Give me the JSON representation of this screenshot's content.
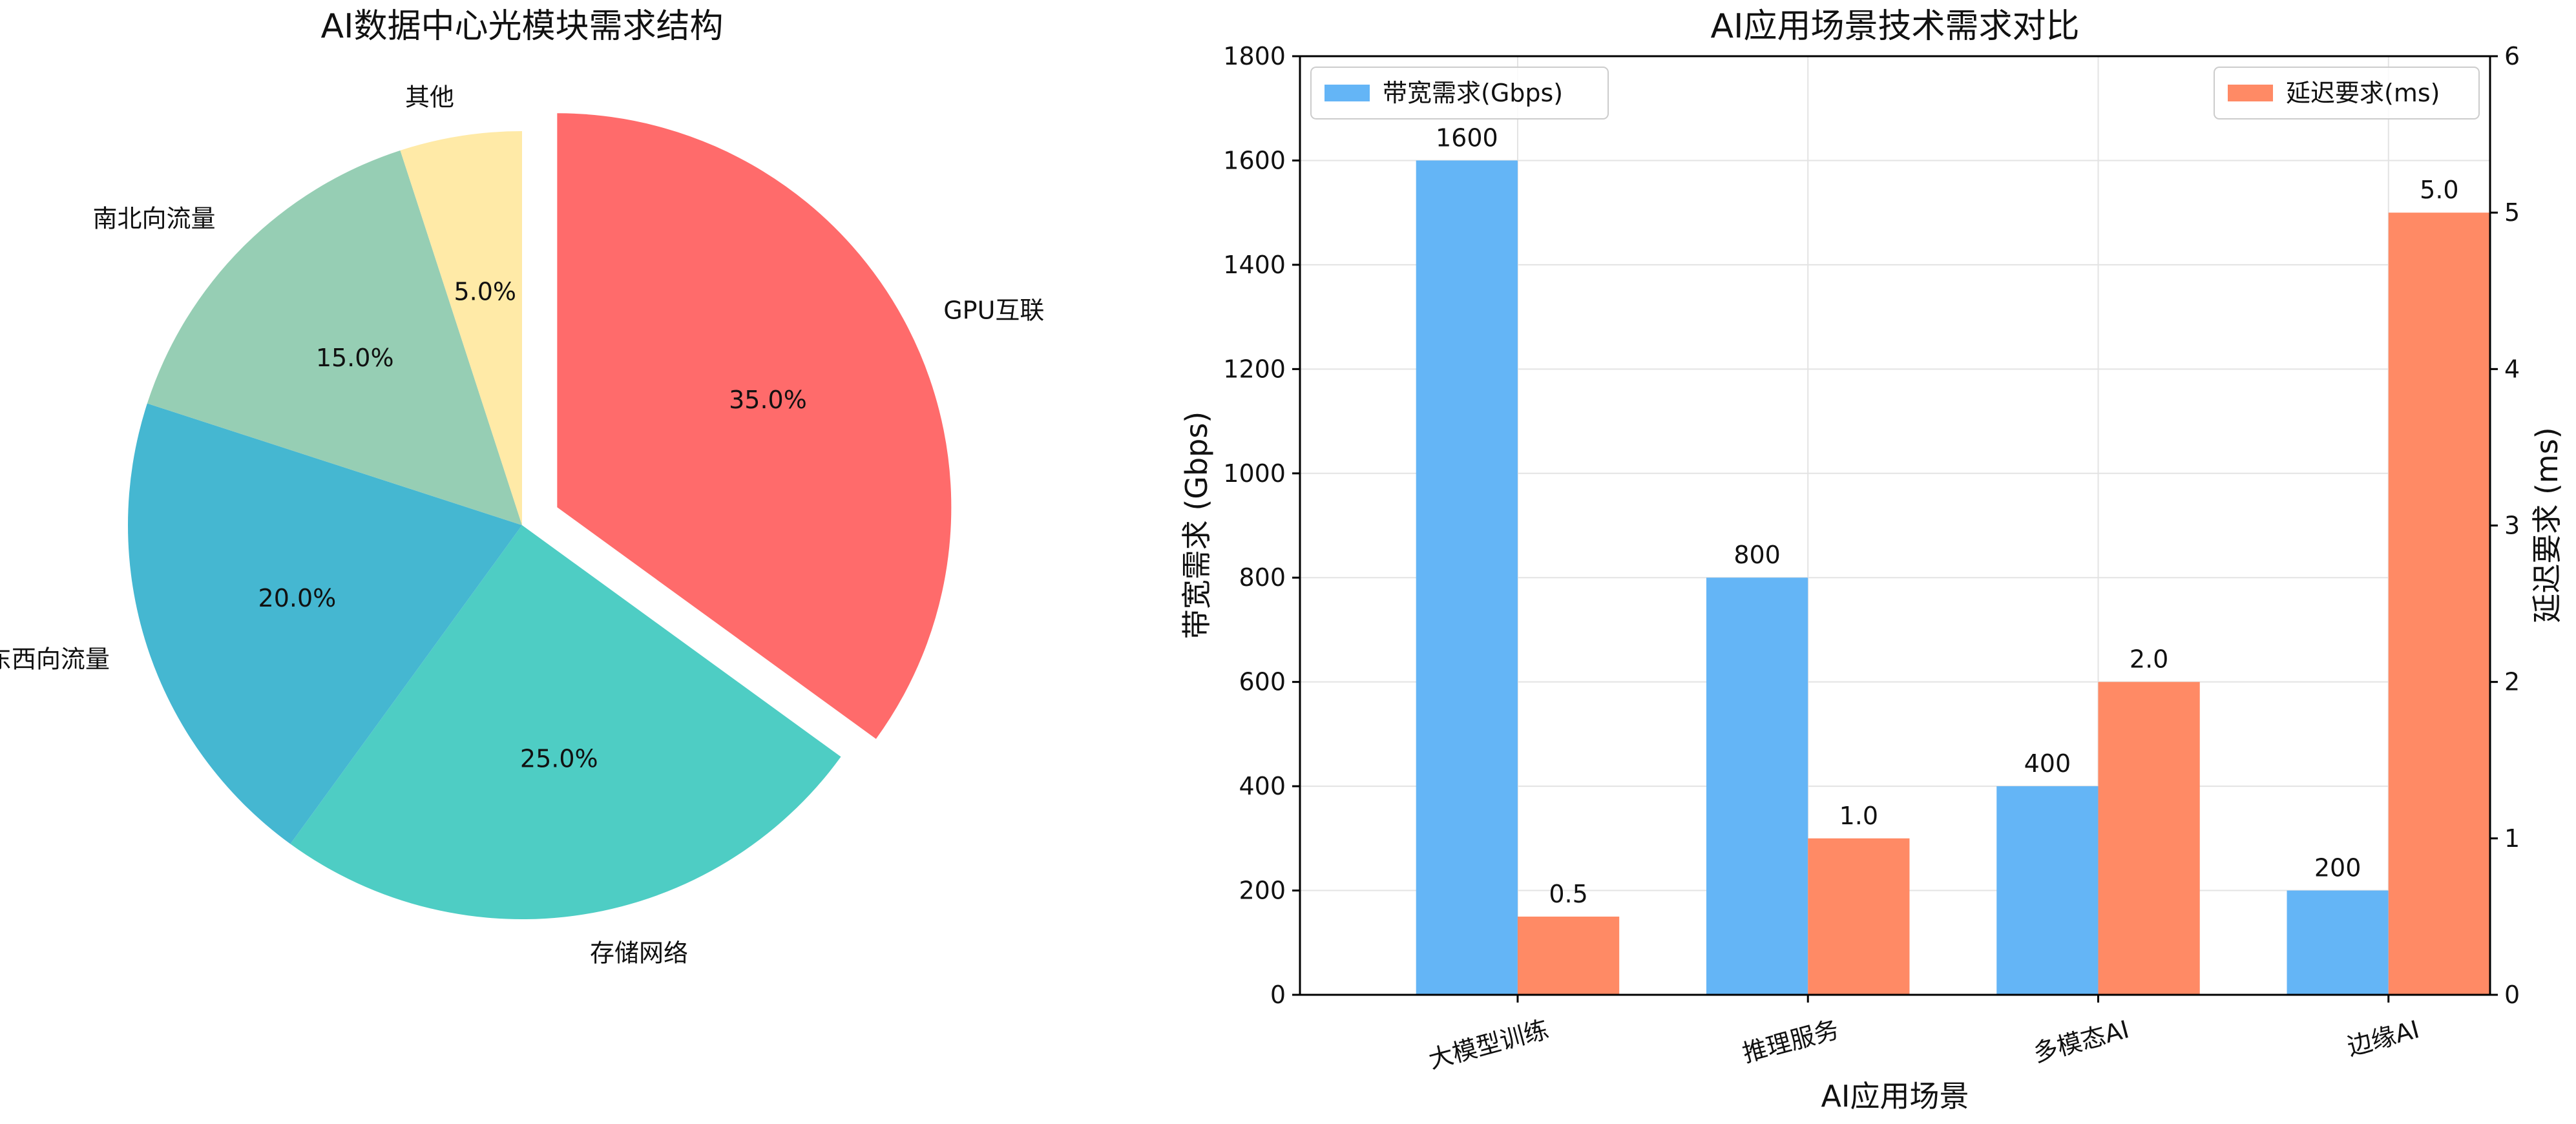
{
  "chart_data": [
    {
      "type": "pie",
      "title": "AI数据中心光模块需求结构",
      "slices": [
        {
          "label": "GPU互联",
          "value": 35.0,
          "pct_label": "35.0%",
          "color": "#ff6b6b",
          "exploded": true
        },
        {
          "label": "存储网络",
          "value": 25.0,
          "pct_label": "25.0%",
          "color": "#4ecdc4",
          "exploded": false
        },
        {
          "label": "东西向流量",
          "value": 20.0,
          "pct_label": "20.0%",
          "color": "#45b7d1",
          "exploded": false
        },
        {
          "label": "南北向流量",
          "value": 15.0,
          "pct_label": "15.0%",
          "color": "#96ceb4",
          "exploded": false
        },
        {
          "label": "其他",
          "value": 5.0,
          "pct_label": "5.0%",
          "color": "#ffeaa7",
          "exploded": false
        }
      ],
      "start_angle_deg": 90,
      "direction": "clockwise"
    },
    {
      "type": "bar",
      "title": "AI应用场景技术需求对比",
      "xlabel": "AI应用场景",
      "ylabel": "带宽需求 (Gbps)",
      "y2label": "延迟要求 (ms)",
      "categories": [
        "大模型训练",
        "推理服务",
        "多模态AI",
        "边缘AI"
      ],
      "series": [
        {
          "name": "带宽需求(Gbps)",
          "axis": "left",
          "values": [
            1600,
            800,
            400,
            200
          ],
          "value_labels": [
            "1600",
            "800",
            "400",
            "200"
          ],
          "color": "#64b5f6"
        },
        {
          "name": "延迟要求(ms)",
          "axis": "right",
          "values": [
            0.5,
            1.0,
            2.0,
            5.0
          ],
          "value_labels": [
            "0.5",
            "1.0",
            "2.0",
            "5.0"
          ],
          "color": "#ff8a65"
        }
      ],
      "ylim": [
        0,
        1800
      ],
      "y2lim": [
        0,
        6
      ],
      "yticks": [
        "0",
        "200",
        "400",
        "600",
        "800",
        "1000",
        "1200",
        "1400",
        "1600",
        "1800"
      ],
      "y2ticks": [
        "0",
        "1",
        "2",
        "3",
        "4",
        "5",
        "6"
      ],
      "grid": true,
      "legend_left": "top-left",
      "legend_right": "top-right"
    }
  ]
}
